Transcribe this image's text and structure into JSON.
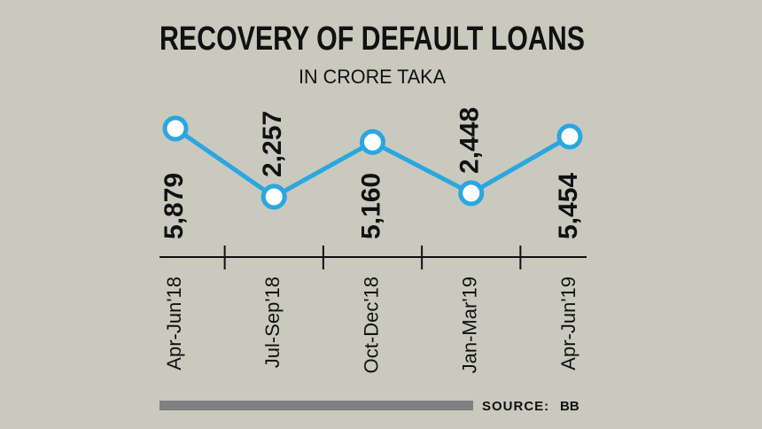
{
  "chart_data": {
    "type": "line",
    "title": "RECOVERY OF DEFAULT LOANS",
    "subtitle": "IN CRORE TAKA",
    "categories": [
      "Apr-Jun'18",
      "Jul-Sep'18",
      "Oct-Dec'18",
      "Jan-Mar'19",
      "Apr-Jun'19"
    ],
    "values": [
      5879,
      2257,
      5160,
      2448,
      5454
    ],
    "value_labels": [
      "5,879",
      "2,257",
      "5,160",
      "2,448",
      "5,454"
    ],
    "color": "#2aa6e0",
    "source_label": "SOURCE:",
    "source": "BB"
  }
}
